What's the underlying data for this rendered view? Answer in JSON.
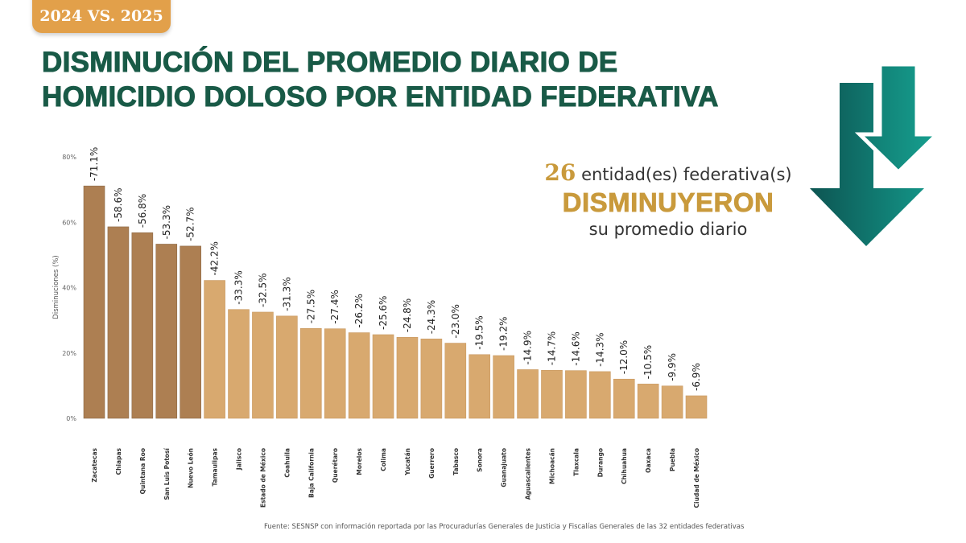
{
  "header": {
    "badge": "2024 VS. 2025",
    "title_line1": "DISMINUCIÓN DEL PROMEDIO DIARIO DE",
    "title_line2": "HOMICIDIO DOLOSO POR ENTIDAD FEDERATIVA"
  },
  "callout": {
    "count": "26",
    "line1_rest": " entidad(es) federativa(s)",
    "line2": "DISMINUYERON",
    "line3": "su promedio diario"
  },
  "colors": {
    "title": "#195a47",
    "accent_gold": "#c99a3c",
    "bar_top5": "#ad7f52",
    "bar_rest": "#d8a96f",
    "arrow_teal_dark": "#0d5a55",
    "arrow_teal_light": "#15978a"
  },
  "icons": [
    "down-arrows-icon"
  ],
  "chart_data": {
    "type": "bar",
    "title": "",
    "xlabel": "",
    "ylabel": "Disminuciones (%)",
    "ylim": [
      0,
      80
    ],
    "yticks": [
      "0%",
      "20%",
      "40%",
      "60%",
      "80%"
    ],
    "ytick_values": [
      0,
      20,
      40,
      60,
      80
    ],
    "grid": false,
    "categories": [
      "Zacatecas",
      "Chiapas",
      "Quintana Roo",
      "San Luis Potosí",
      "Nuevo León",
      "Tamaulipas",
      "Jalisco",
      "Estado de México",
      "Coahuila",
      "Baja California",
      "Querétaro",
      "Morelos",
      "Colima",
      "Yucatán",
      "Guerrero",
      "Tabasco",
      "Sonora",
      "Guanajuato",
      "Aguascalientes",
      "Michoacán",
      "Tlaxcala",
      "Durango",
      "Chihuahua",
      "Oaxaca",
      "Puebla",
      "Ciudad de México"
    ],
    "values": [
      71.1,
      58.6,
      56.8,
      53.3,
      52.7,
      42.2,
      33.3,
      32.5,
      31.3,
      27.5,
      27.4,
      26.2,
      25.6,
      24.8,
      24.3,
      23.0,
      19.5,
      19.2,
      14.9,
      14.7,
      14.6,
      14.3,
      12.0,
      10.5,
      9.9,
      6.9
    ],
    "data_labels": [
      "-71.1%",
      "-58.6%",
      "-56.8%",
      "-53.3%",
      "-52.7%",
      "-42.2%",
      "-33.3%",
      "-32.5%",
      "-31.3%",
      "-27.5%",
      "-27.4%",
      "-26.2%",
      "-25.6%",
      "-24.8%",
      "-24.3%",
      "-23.0%",
      "-19.5%",
      "-19.2%",
      "-14.9%",
      "-14.7%",
      "-14.6%",
      "-14.3%",
      "-12.0%",
      "-10.5%",
      "-9.9%",
      "-6.9%"
    ],
    "highlighted_top": 5
  },
  "source": "Fuente: SESNSP con información reportada por las Procuradurías Generales de Justicia y Fiscalías Generales de las 32 entidades federativas"
}
